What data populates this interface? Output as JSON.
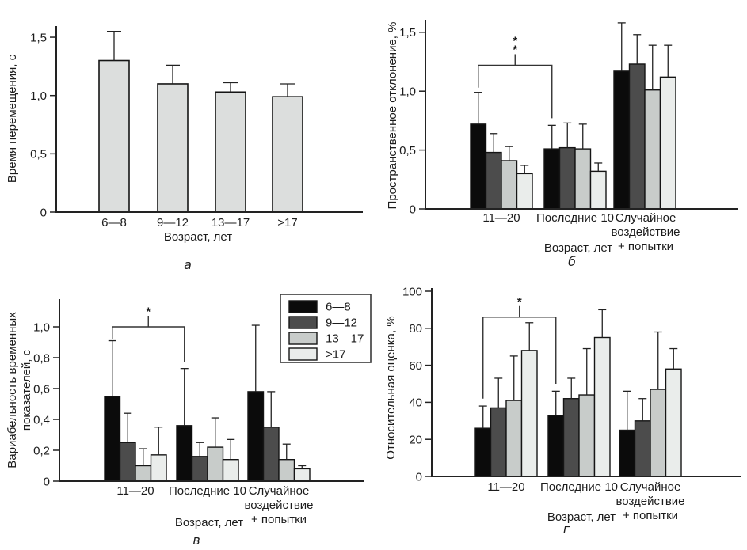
{
  "figure": {
    "background": "#ffffff",
    "axis_color": "#222222",
    "text_color": "#1c1c1c",
    "bar_border_color": "#151515"
  },
  "chart_data": [
    {
      "id": "a",
      "panel_label": "а",
      "type": "bar",
      "ylabel": "Время перемещения, с",
      "xlabel": "Возраст, лет",
      "categories": [
        "6—8",
        "9—12",
        "13—17",
        ">17"
      ],
      "values": [
        1.3,
        1.1,
        1.03,
        0.99
      ],
      "errors": [
        0.25,
        0.16,
        0.08,
        0.11
      ],
      "bar_fill": "#dcdedd",
      "yticks": [
        "0",
        "0,5",
        "1,0",
        "1,5"
      ],
      "ytick_values": [
        0,
        0.5,
        1.0,
        1.5
      ],
      "ylim": [
        0,
        1.6
      ],
      "grid": false
    },
    {
      "id": "b",
      "panel_label": "б",
      "type": "bar",
      "ylabel": "Пространственное отклонение, %",
      "xlabel": "Возраст, лет",
      "categories": [
        "11—20",
        "Последние 10",
        "Случайное\nвоздействие\n+ попытки"
      ],
      "series": [
        {
          "name": "6—8",
          "color": "#0b0b0b",
          "values": [
            0.72,
            0.51,
            1.17
          ],
          "errors": [
            0.27,
            0.2,
            0.41
          ]
        },
        {
          "name": "9—12",
          "color": "#4c4c4c",
          "values": [
            0.48,
            0.52,
            1.23
          ],
          "errors": [
            0.16,
            0.21,
            0.25
          ]
        },
        {
          "name": "13—17",
          "color": "#c8ccca",
          "values": [
            0.41,
            0.51,
            1.01
          ],
          "errors": [
            0.12,
            0.21,
            0.38
          ]
        },
        {
          "name": ">17",
          "color": "#eaedeb",
          "values": [
            0.3,
            0.32,
            1.12
          ],
          "errors": [
            0.07,
            0.07,
            0.27
          ]
        }
      ],
      "yticks": [
        "0",
        "0,5",
        "1,0",
        "1,5"
      ],
      "ytick_values": [
        0,
        0.5,
        1.0,
        1.5
      ],
      "ylim": [
        0,
        1.6
      ],
      "grid": false,
      "significance": {
        "label": "**",
        "from": 0,
        "to": 1,
        "y": 1.22,
        "leg_from_y": 1.03,
        "leg_to_y": 0.77
      }
    },
    {
      "id": "v",
      "panel_label": "в",
      "type": "bar",
      "ylabel": "Вариабельность временных показателей, с",
      "ylabel_lines": [
        "Вариабельность временных",
        "показателей, с"
      ],
      "xlabel": "Возраст, лет",
      "categories": [
        "11—20",
        "Последние 10",
        "Случайное\nвоздействие\n+ попытки"
      ],
      "series": [
        {
          "name": "6—8",
          "color": "#0b0b0b",
          "values": [
            0.55,
            0.36,
            0.58
          ],
          "errors": [
            0.36,
            0.37,
            0.43
          ]
        },
        {
          "name": "9—12",
          "color": "#4c4c4c",
          "values": [
            0.25,
            0.16,
            0.35
          ],
          "errors": [
            0.19,
            0.09,
            0.23
          ]
        },
        {
          "name": "13—17",
          "color": "#c8ccca",
          "values": [
            0.1,
            0.22,
            0.14
          ],
          "errors": [
            0.11,
            0.19,
            0.1
          ]
        },
        {
          "name": ">17",
          "color": "#eaedeb",
          "values": [
            0.17,
            0.14,
            0.08
          ],
          "errors": [
            0.18,
            0.13,
            0.02
          ]
        }
      ],
      "yticks": [
        "0",
        "0,2",
        "0,4",
        "0,6",
        "0,8",
        "1,0"
      ],
      "ytick_values": [
        0,
        0.2,
        0.4,
        0.6,
        0.8,
        1.0
      ],
      "ylim": [
        0,
        1.18
      ],
      "grid": false,
      "show_legend": true,
      "legend_position": "top-right",
      "significance": {
        "label": "*",
        "from": 0,
        "to": 1,
        "y": 1.0,
        "leg_from_y": 0.92,
        "leg_to_y": 0.77
      }
    },
    {
      "id": "g",
      "panel_label": "г",
      "type": "bar",
      "ylabel": "Относительная оценка, %",
      "xlabel": "Возраст, лет",
      "categories": [
        "11—20",
        "Последние 10",
        "Случайное\nвоздействие\n+ попытки"
      ],
      "series": [
        {
          "name": "6—8",
          "color": "#0b0b0b",
          "values": [
            26,
            33,
            25
          ],
          "errors": [
            12,
            13,
            21
          ]
        },
        {
          "name": "9—12",
          "color": "#4c4c4c",
          "values": [
            37,
            42,
            30
          ],
          "errors": [
            16,
            11,
            12
          ]
        },
        {
          "name": "13—17",
          "color": "#c8ccca",
          "values": [
            41,
            44,
            47
          ],
          "errors": [
            24,
            25,
            31
          ]
        },
        {
          "name": ">17",
          "color": "#eaedeb",
          "values": [
            68,
            75,
            58
          ],
          "errors": [
            15,
            15,
            11
          ]
        }
      ],
      "yticks": [
        "0",
        "20",
        "40",
        "60",
        "80",
        "100"
      ],
      "ytick_values": [
        0,
        20,
        40,
        60,
        80,
        100
      ],
      "ylim": [
        0,
        102
      ],
      "grid": false,
      "significance": {
        "label": "*",
        "from": 0,
        "to": 1,
        "y": 86,
        "leg_from_y": 42,
        "leg_to_y": 50
      }
    }
  ]
}
